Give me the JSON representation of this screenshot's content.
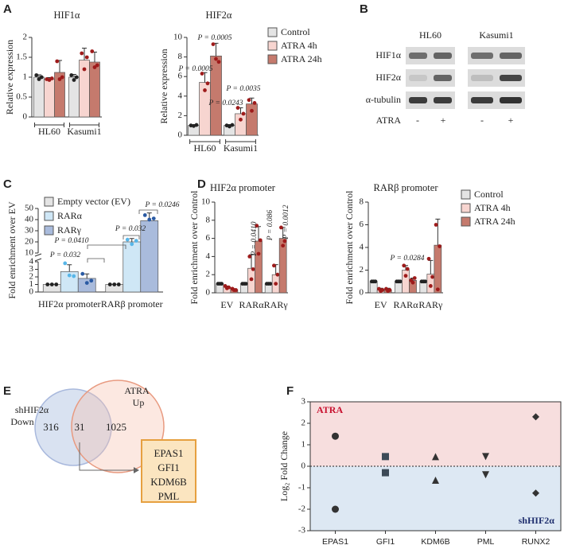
{
  "panel_labels": [
    "A",
    "B",
    "C",
    "D",
    "E",
    "F"
  ],
  "chart_data": [
    {
      "type": "bar",
      "title": "HIF1α",
      "y_label": "Relative expression",
      "categories": [
        "HL60",
        "Kasumi1"
      ],
      "series": [
        {
          "color": "#e4e4e4",
          "point_color": "#222222",
          "values": [
            1.0,
            1.0
          ],
          "errors": [
            0.06,
            0.07
          ],
          "points": [
            [
              1.05,
              0.95,
              1.0
            ],
            [
              1.05,
              0.93,
              1.0
            ]
          ]
        },
        {
          "color": "#f7d5d0",
          "point_color": "#9e1b1b",
          "values": [
            0.95,
            1.43
          ],
          "errors": [
            0.04,
            0.3
          ],
          "points": [
            [
              0.95,
              0.93,
              0.97
            ],
            [
              1.6,
              1.2,
              1.5
            ]
          ]
        },
        {
          "color": "#c57a6d",
          "point_color": "#9e1b1b",
          "values": [
            1.12,
            1.38
          ],
          "errors": [
            0.3,
            0.25
          ],
          "points": [
            [
              1.4,
              0.95,
              1.0
            ],
            [
              1.65,
              1.25,
              1.3
            ]
          ]
        }
      ],
      "ylim": [
        0,
        2
      ],
      "yticks": [
        0,
        0.5,
        1,
        1.5,
        2
      ]
    },
    {
      "type": "bar",
      "title": "HIF2α",
      "y_label": "Relative expression",
      "categories": [
        "HL60",
        "Kasumi1"
      ],
      "series": [
        {
          "name": "Control",
          "color": "#e4e4e4",
          "point_color": "#222222",
          "values": [
            1.0,
            1.0
          ],
          "errors": [
            0.08,
            0.1
          ],
          "points": [
            [
              1.0,
              0.95,
              1.05
            ],
            [
              1.0,
              0.9,
              1.05
            ]
          ]
        },
        {
          "name": "ATRA 4h",
          "color": "#f7d5d0",
          "point_color": "#9e1b1b",
          "values": [
            5.4,
            2.2
          ],
          "errors": [
            1.0,
            0.6
          ],
          "points": [
            [
              6.3,
              4.6,
              5.3
            ],
            [
              2.8,
              1.6,
              2.2
            ]
          ]
        },
        {
          "name": "ATRA 24h",
          "color": "#c57a6d",
          "point_color": "#9e1b1b",
          "values": [
            8.1,
            3.2
          ],
          "errors": [
            1.3,
            0.6
          ],
          "points": [
            [
              9.3,
              7.8,
              7.5
            ],
            [
              3.6,
              2.5,
              3.3
            ]
          ]
        }
      ],
      "ylim": [
        0,
        10
      ],
      "yticks": [
        0,
        2,
        4,
        6,
        8,
        10
      ],
      "annotations": [
        "P = 0.0005",
        "P = 0.0005",
        "P = 0.0035",
        "P = 0.0243"
      ]
    },
    {
      "type": "bar",
      "y_label": "Fold enrichment over EV",
      "categories": [
        "HIF2α promoter",
        "RARβ promoter"
      ],
      "series": [
        {
          "name": "Empty vector (EV)",
          "color": "#e4e4e4",
          "point_color": "#222222",
          "values": [
            1.0,
            1.0
          ],
          "errors": [
            0.03,
            0.03
          ],
          "points": [
            [
              1,
              1,
              1
            ],
            [
              1,
              1,
              1
            ]
          ]
        },
        {
          "name": "RARα",
          "color": "#cfe7f6",
          "point_color": "#58b6e8",
          "values": [
            2.7,
            20
          ],
          "errors": [
            0.9,
            3
          ],
          "points": [
            [
              3.8,
              2.2,
              2.1
            ],
            [
              22,
              18,
              21
            ]
          ]
        },
        {
          "name": "RARγ",
          "color": "#a9bbdc",
          "point_color": "#2a5aa3",
          "values": [
            1.8,
            39
          ],
          "errors": [
            0.6,
            7
          ],
          "points": [
            [
              2.4,
              1.2,
              1.5
            ],
            [
              44,
              40,
              41
            ]
          ]
        }
      ],
      "ylim": [
        0,
        50
      ],
      "ybreak": [
        4,
        10
      ],
      "yticks": [
        0,
        1,
        2,
        3,
        4,
        10,
        20,
        30,
        40,
        50
      ],
      "annotations": [
        "P = 0.0246",
        "P = 0.032",
        "P = 0.0410",
        "P = 0.032"
      ]
    },
    {
      "type": "bar",
      "title": "HIF2α promoter",
      "y_label": "Fold enrichment over Control",
      "categories": [
        "EV",
        "RARα",
        "RARγ"
      ],
      "series": [
        {
          "color": "#e4e4e4",
          "point_color": "#222222",
          "values": [
            1.0,
            1.0,
            1.0
          ],
          "errors": [
            0.05,
            0.05,
            0.05
          ],
          "points": [
            [
              1,
              1,
              1
            ],
            [
              1,
              1,
              1
            ],
            [
              1,
              1,
              1
            ]
          ]
        },
        {
          "color": "#f7d5d0",
          "point_color": "#9e1b1b",
          "values": [
            0.6,
            2.7,
            2.0
          ],
          "errors": [
            0.15,
            1.5,
            1.1
          ],
          "points": [
            [
              0.75,
              0.5,
              0.6
            ],
            [
              4.0,
              1.5,
              2.6
            ],
            [
              3.0,
              1.0,
              2.0
            ]
          ]
        },
        {
          "color": "#c57a6d",
          "point_color": "#9e1b1b",
          "values": [
            0.35,
            5.7,
            6.0
          ],
          "errors": [
            0.1,
            1.6,
            1.2
          ],
          "points": [
            [
              0.45,
              0.3,
              0.3
            ],
            [
              7.4,
              4.3,
              5.8
            ],
            [
              7.2,
              5.2,
              5.7
            ]
          ]
        }
      ],
      "ylim": [
        0,
        10
      ],
      "yticks": [
        0,
        2,
        4,
        6,
        8,
        10
      ],
      "annotations": [
        "P = 0.0410",
        "P = 0.086",
        "P = 0.0012"
      ]
    },
    {
      "type": "bar",
      "title": "RARβ promoter",
      "y_label": "Fold enrichment over Control",
      "categories": [
        "EV",
        "RARα",
        "RARγ"
      ],
      "series": [
        {
          "name": "Control",
          "color": "#e4e4e4",
          "point_color": "#222222",
          "values": [
            1.0,
            1.0,
            1.0
          ],
          "errors": [
            0.05,
            0.05,
            0.05
          ],
          "points": [
            [
              1,
              1,
              1
            ],
            [
              1,
              1,
              1
            ],
            [
              1,
              1,
              1
            ]
          ]
        },
        {
          "name": "ATRA 4h",
          "color": "#f7d5d0",
          "point_color": "#9e1b1b",
          "values": [
            0.25,
            2.0,
            1.65
          ],
          "errors": [
            0.15,
            0.4,
            1.2
          ],
          "points": [
            [
              0.35,
              0.15,
              0.25
            ],
            [
              2.4,
              1.5,
              2.1
            ],
            [
              3.0,
              0.6,
              1.4
            ]
          ]
        },
        {
          "name": "ATRA 24h",
          "color": "#c57a6d",
          "point_color": "#9e1b1b",
          "values": [
            0.25,
            1.1,
            4.2
          ],
          "errors": [
            0.15,
            0.2,
            2.3
          ],
          "points": [
            [
              0.35,
              0.15,
              0.25
            ],
            [
              1.1,
              0.9,
              1.3
            ],
            [
              6.0,
              0.3,
              4.1
            ]
          ]
        }
      ],
      "ylim": [
        0,
        8
      ],
      "yticks": [
        0,
        2,
        4,
        6,
        8
      ],
      "annotations": [
        "P = 0.0284"
      ]
    },
    {
      "type": "scatter",
      "y_label": "Log₂ Fold Change",
      "categories": [
        "EPAS1",
        "GFI1",
        "KDM6B",
        "PML",
        "RUNX2"
      ],
      "markers": [
        "circle",
        "square",
        "triangle",
        "triangle-down",
        "diamond"
      ],
      "series": [
        {
          "name": "ATRA",
          "color": "#c8102e",
          "band_color": "#f7dede",
          "values": [
            1.4,
            0.45,
            0.45,
            0.45,
            2.3
          ]
        },
        {
          "name": "shHIF2α",
          "color": "#1f2f6e",
          "band_color": "#dde8f3",
          "values": [
            -2.0,
            -0.3,
            -0.65,
            -0.4,
            -1.25
          ]
        }
      ],
      "ylim": [
        -3,
        3
      ],
      "yticks": [
        -3,
        -2,
        -1,
        0,
        1,
        2,
        3
      ]
    }
  ],
  "blot": {
    "columns": [
      "HL60",
      "Kasumi1"
    ],
    "rows": [
      "HIF1α",
      "HIF2α",
      "α-tubulin"
    ],
    "treatment": "ATRA",
    "lanes": [
      "-",
      "+",
      "-",
      "+"
    ]
  },
  "venn": {
    "left": [
      "shHIF2α",
      "Down"
    ],
    "right": [
      "ATRA",
      "Up"
    ],
    "counts": [
      316,
      31,
      1025
    ],
    "genes": [
      "EPAS1",
      "GFI1",
      "KDM6B",
      "PML"
    ]
  }
}
